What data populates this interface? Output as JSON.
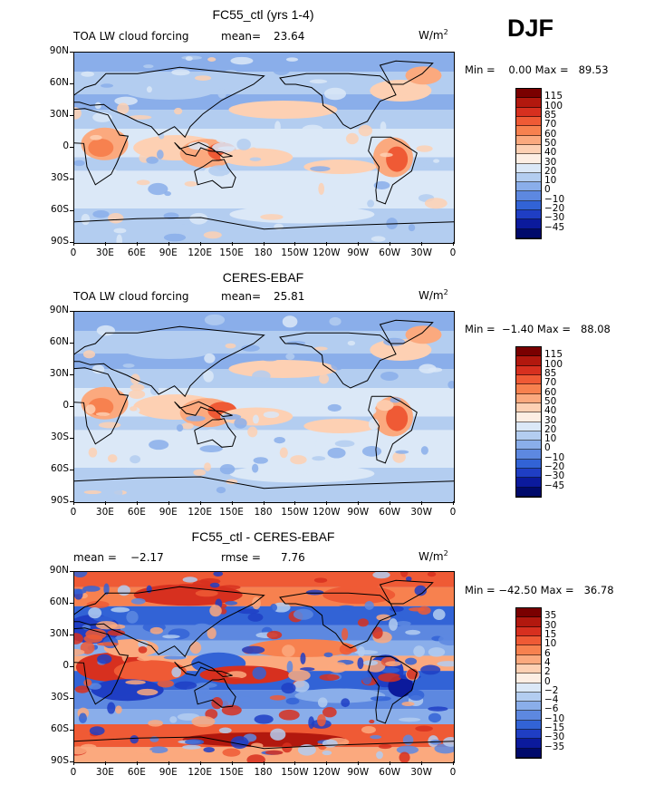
{
  "season": "DJF",
  "panels": [
    {
      "title": "FC55_ctl (yrs 1-4)",
      "left_label": "TOA LW cloud forcing",
      "stat1": "mean=",
      "stat1_val": "23.64",
      "stat2": "",
      "stat2_val": "",
      "units": "W/m",
      "units_sup": "2",
      "minmax": "Min =    0.00 Max =   89.53",
      "cbar_levels": [
        "115",
        "100",
        "85",
        "70",
        "60",
        "50",
        "40",
        "30",
        "20",
        "10",
        "0",
        "−10",
        "−20",
        "−30",
        "−45"
      ]
    },
    {
      "title": "CERES-EBAF",
      "left_label": "TOA LW cloud forcing",
      "stat1": "mean=",
      "stat1_val": "25.81",
      "stat2": "",
      "stat2_val": "",
      "units": "W/m",
      "units_sup": "2",
      "minmax": "Min =  −1.40 Max =   88.08",
      "cbar_levels": [
        "115",
        "100",
        "85",
        "70",
        "60",
        "50",
        "40",
        "30",
        "20",
        "10",
        "0",
        "−10",
        "−20",
        "−30",
        "−45"
      ]
    },
    {
      "title": "FC55_ctl - CERES-EBAF",
      "left_label": "mean =",
      "stat1": "",
      "stat1_val": "−2.17",
      "stat2": "rmse =",
      "stat2_val": "7.76",
      "units": "W/m",
      "units_sup": "2",
      "minmax": "Min = −42.50 Max =   36.78",
      "cbar_levels": [
        "35",
        "30",
        "15",
        "10",
        "6",
        "4",
        "2",
        "0",
        "−2",
        "−4",
        "−6",
        "−10",
        "−15",
        "−30",
        "−35"
      ]
    }
  ],
  "axes": {
    "y_ticks": [
      "90N",
      "60N",
      "30N",
      "0",
      "30S",
      "60S",
      "90S"
    ],
    "x_ticks": [
      "0",
      "30E",
      "60E",
      "90E",
      "120E",
      "150E",
      "180",
      "150W",
      "120W",
      "90W",
      "60W",
      "30W",
      "0"
    ]
  },
  "colors": {
    "abs_scale": [
      "#7a0000",
      "#b2180e",
      "#d7301f",
      "#ef5a35",
      "#f7814f",
      "#fba97e",
      "#fdd0b3",
      "#fdeee3",
      "#dbe8f7",
      "#b3cdf0",
      "#8aaeea",
      "#5d88e0",
      "#3263d6",
      "#1f3ec4",
      "#0b1a9c",
      "#000a6b"
    ],
    "diff_scale": [
      "#7a0000",
      "#b2180e",
      "#d7301f",
      "#ef5a35",
      "#f7814f",
      "#fba97e",
      "#fdd0b3",
      "#fdeee3",
      "#dbe8f7",
      "#b3cdf0",
      "#8aaeea",
      "#5d88e0",
      "#3263d6",
      "#1f3ec4",
      "#0b1a9c",
      "#000a6b"
    ]
  },
  "chart_data": [
    {
      "type": "heatmap",
      "title": "FC55_ctl (yrs 1-4)",
      "subtitle": "TOA LW cloud forcing",
      "mean": 23.64,
      "min": 0.0,
      "max": 89.53,
      "units": "W/m2",
      "contour_levels": [
        -45,
        -30,
        -20,
        -10,
        0,
        10,
        20,
        30,
        40,
        50,
        60,
        70,
        85,
        100,
        115
      ],
      "xlim": [
        0,
        360
      ],
      "ylim": [
        -90,
        90
      ],
      "x_ticks": [
        "0",
        "30E",
        "60E",
        "90E",
        "120E",
        "150E",
        "180",
        "150W",
        "120W",
        "90W",
        "60W",
        "30W",
        "0"
      ],
      "y_ticks": [
        "90N",
        "60N",
        "30N",
        "0",
        "30S",
        "60S",
        "90S"
      ]
    },
    {
      "type": "heatmap",
      "title": "CERES-EBAF",
      "subtitle": "TOA LW cloud forcing",
      "mean": 25.81,
      "min": -1.4,
      "max": 88.08,
      "units": "W/m2",
      "contour_levels": [
        -45,
        -30,
        -20,
        -10,
        0,
        10,
        20,
        30,
        40,
        50,
        60,
        70,
        85,
        100,
        115
      ],
      "xlim": [
        0,
        360
      ],
      "ylim": [
        -90,
        90
      ]
    },
    {
      "type": "heatmap",
      "title": "FC55_ctl - CERES-EBAF",
      "mean": -2.17,
      "rmse": 7.76,
      "min": -42.5,
      "max": 36.78,
      "units": "W/m2",
      "contour_levels": [
        -35,
        -30,
        -15,
        -10,
        -6,
        -4,
        -2,
        0,
        2,
        4,
        6,
        10,
        15,
        30,
        35
      ],
      "xlim": [
        0,
        360
      ],
      "ylim": [
        -90,
        90
      ]
    }
  ]
}
